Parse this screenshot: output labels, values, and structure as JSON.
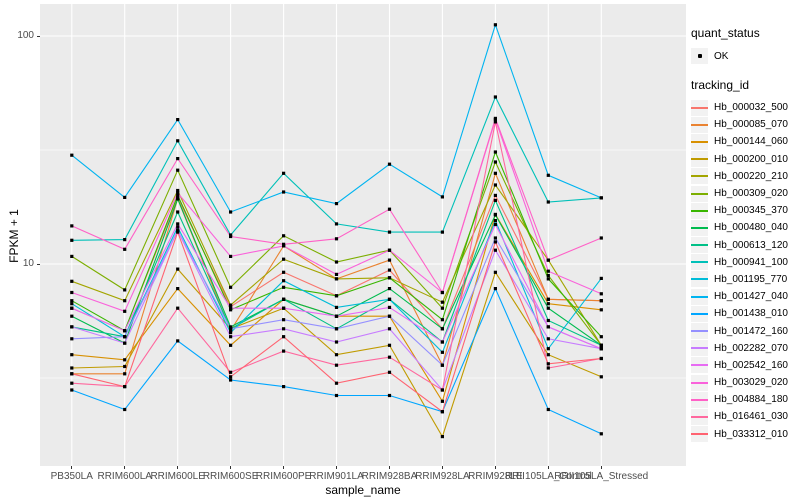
{
  "chart": {
    "panel_bg": "#EBEBEB",
    "grid_color": "#FFFFFF",
    "point_color": "#000000",
    "axis_text_color": "#4D4D4D"
  },
  "axes": {
    "x_title": "sample_name",
    "y_title": "FPKM + 1",
    "y_tick_labels": [
      "100",
      "10"
    ]
  },
  "legend": {
    "quant_status_title": "quant_status",
    "quant_status_items": [
      "OK"
    ],
    "tracking_id_title": "tracking_id"
  },
  "chart_data": {
    "type": "line",
    "title": "",
    "xlabel": "sample_name",
    "ylabel": "FPKM + 1",
    "y_scale": "log10",
    "y_tick_values": [
      100,
      10
    ],
    "y_minor_tick_values": [
      31.623,
      3.1623
    ],
    "ylim": [
      1.3,
      138
    ],
    "grid": true,
    "legend_position": "right",
    "point_shape": "small black square (quant_status OK)",
    "categories": [
      "PB350LA",
      "RRIM600LA",
      "RRIM600LE",
      "RRIM600SE",
      "RRIM600PE",
      "RRIM901LA",
      "RRIM928BA",
      "RRIM928LA",
      "RRIM928LE",
      "RRII105LA_Control",
      "RRII105LA_Stressed"
    ],
    "series": [
      {
        "name": "Hb_000032_500",
        "color": "#F8766D",
        "quant_status": "OK",
        "values": [
          6.4,
          5.1,
          19.5,
          6.5,
          9.2,
          7.25,
          9.4,
          5.2,
          20,
          7.0,
          6.9
        ]
      },
      {
        "name": "Hb_000085_070",
        "color": "#EA8331",
        "quant_status": "OK",
        "values": [
          3.3,
          3.3,
          19.3,
          5.1,
          12.0,
          8.6,
          10.4,
          3.6,
          25,
          7.0,
          6.9
        ]
      },
      {
        "name": "Hb_000144_060",
        "color": "#D89000",
        "quant_status": "OK",
        "values": [
          4.0,
          3.8,
          7.8,
          4.4,
          7.0,
          5.9,
          5.9,
          2.5,
          16.5,
          6.7,
          6.3
        ]
      },
      {
        "name": "Hb_000200_010",
        "color": "#C09B00",
        "quant_status": "OK",
        "values": [
          3.5,
          3.55,
          9.5,
          5.2,
          6.4,
          4.0,
          4.4,
          1.75,
          9.2,
          4.0,
          3.2
        ]
      },
      {
        "name": "Hb_000220_210",
        "color": "#A3A500",
        "quant_status": "OK",
        "values": [
          8.4,
          6.9,
          21,
          6.6,
          10.5,
          8.6,
          8.7,
          6.8,
          22.2,
          10.4,
          4.4
        ]
      },
      {
        "name": "Hb_000309_020",
        "color": "#7CAE00",
        "quant_status": "OK",
        "values": [
          10.8,
          7.7,
          25.8,
          7.9,
          13.3,
          10.2,
          11.5,
          6.4,
          28,
          8.9,
          4.4
        ]
      },
      {
        "name": "Hb_000345_370",
        "color": "#39B600",
        "quant_status": "OK",
        "values": [
          6.9,
          5.1,
          20,
          6.3,
          7.9,
          7.25,
          8.7,
          5.7,
          31,
          8.6,
          4.8
        ]
      },
      {
        "name": "Hb_000480_040",
        "color": "#00BB4E",
        "quant_status": "OK",
        "values": [
          5.9,
          4.5,
          19.3,
          5.3,
          7.0,
          5.9,
          7.8,
          5.2,
          16.4,
          6.4,
          4.4
        ]
      },
      {
        "name": "Hb_000613_120",
        "color": "#00C087",
        "quant_status": "OK",
        "values": [
          5.3,
          4.8,
          16.9,
          5.2,
          7.0,
          5.2,
          7.0,
          4.55,
          19,
          5.65,
          4.4
        ]
      },
      {
        "name": "Hb_000941_100",
        "color": "#00C0B8",
        "quant_status": "OK",
        "values": [
          12.7,
          12.8,
          34.7,
          13.4,
          25,
          15,
          13.8,
          13.8,
          54,
          18.7,
          19.5
        ]
      },
      {
        "name": "Hb_001195_770",
        "color": "#00BCD8",
        "quant_status": "OK",
        "values": [
          6.7,
          4.8,
          14.5,
          5.0,
          8.45,
          6.45,
          7.0,
          4.1,
          15.5,
          4.25,
          8.65
        ]
      },
      {
        "name": "Hb_001427_040",
        "color": "#00B4F0",
        "quant_status": "OK",
        "values": [
          30,
          19.6,
          43,
          16.9,
          20.7,
          18.4,
          27.4,
          19.7,
          112,
          24.5,
          19.5
        ]
      },
      {
        "name": "Hb_001438_010",
        "color": "#00A6FF",
        "quant_status": "OK",
        "values": [
          2.8,
          2.3,
          4.6,
          3.1,
          2.9,
          2.65,
          2.65,
          2.25,
          7.8,
          2.3,
          1.8
        ]
      },
      {
        "name": "Hb_001472_160",
        "color": "#9590FF",
        "quant_status": "OK",
        "values": [
          4.7,
          4.8,
          14,
          5.2,
          5.7,
          5.2,
          5.9,
          3.6,
          13,
          5.3,
          4.25
        ]
      },
      {
        "name": "Hb_002282_070",
        "color": "#C77CFF",
        "quant_status": "OK",
        "values": [
          5.3,
          4.5,
          14,
          4.8,
          5.2,
          4.55,
          5.2,
          2.8,
          11.5,
          4.7,
          4.25
        ]
      },
      {
        "name": "Hb_002542_160",
        "color": "#E76BF3",
        "quant_status": "OK",
        "values": [
          6.4,
          5.1,
          15,
          6.4,
          6.4,
          5.9,
          6.45,
          4.55,
          14.9,
          5.3,
          4.25
        ]
      },
      {
        "name": "Hb_003029_020",
        "color": "#FA62DB",
        "quant_status": "OK",
        "values": [
          7.5,
          6.2,
          20.5,
          10.8,
          12.0,
          9.0,
          11.5,
          7.5,
          43,
          9.3,
          7.4
        ]
      },
      {
        "name": "Hb_004884_180",
        "color": "#FF61C7",
        "quant_status": "OK",
        "values": [
          14.7,
          11.6,
          29,
          13.2,
          12.2,
          12.9,
          17.4,
          7.5,
          43.5,
          10.4,
          13.0
        ]
      },
      {
        "name": "Hb_016461_030",
        "color": "#FF689E",
        "quant_status": "OK",
        "values": [
          3.0,
          2.9,
          6.4,
          3.35,
          4.15,
          3.6,
          3.9,
          2.8,
          42,
          3.5,
          3.85
        ]
      },
      {
        "name": "Hb_033312_010",
        "color": "#FF6371",
        "quant_status": "OK",
        "values": [
          3.3,
          2.9,
          13.8,
          3.2,
          4.8,
          3.0,
          3.35,
          2.25,
          12.5,
          3.65,
          3.85
        ]
      }
    ]
  }
}
